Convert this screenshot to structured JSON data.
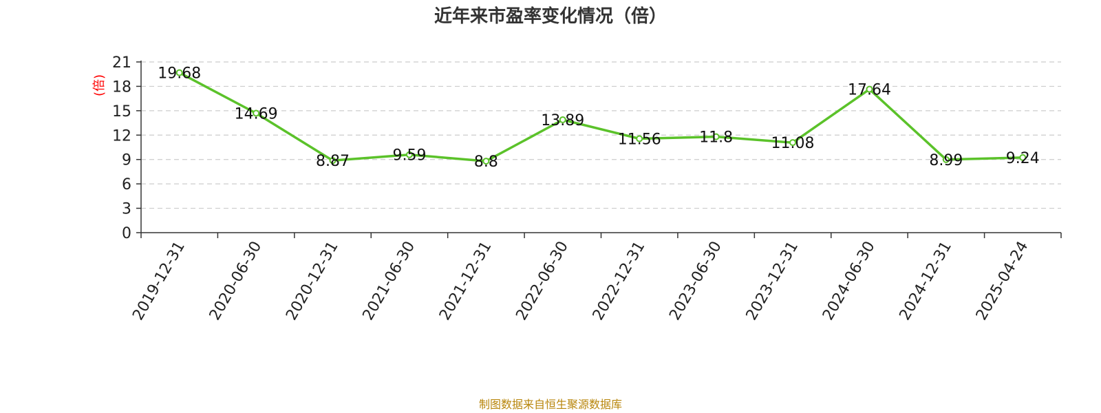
{
  "chart_data": {
    "type": "line",
    "title": "近年来市盈率变化情况（倍）",
    "ylabel": "(倍)",
    "xlabel": "",
    "categories": [
      "2019-12-31",
      "2020-06-30",
      "2020-12-31",
      "2021-06-30",
      "2021-12-31",
      "2022-06-30",
      "2022-12-31",
      "2023-06-30",
      "2023-12-31",
      "2024-06-30",
      "2024-12-31",
      "2025-04-24"
    ],
    "values": [
      19.68,
      14.69,
      8.87,
      9.59,
      8.8,
      13.89,
      11.56,
      11.8,
      11.08,
      17.64,
      8.99,
      9.24
    ],
    "value_labels": [
      "19.68",
      "14.69",
      "8.87",
      "9.59",
      "8.8",
      "13.89",
      "11.56",
      "11.8",
      "11.08",
      "17.64",
      "8.99",
      "9.24"
    ],
    "yticks": [
      0,
      3,
      6,
      9,
      12,
      15,
      18,
      21
    ],
    "ylim": [
      0,
      21
    ],
    "grid": true,
    "legend": "none"
  },
  "footer": "制图数据来自恒生聚源数据库",
  "colors": {
    "line": "#5bc22a",
    "ylabel": "#ff0000",
    "footer": "#b8860b",
    "grid": "#cccccc",
    "axis": "#333333"
  }
}
